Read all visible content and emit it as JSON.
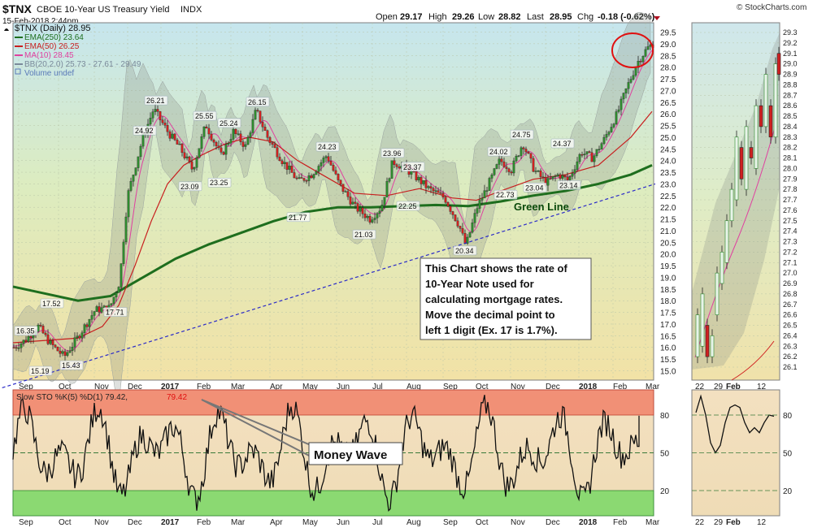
{
  "header": {
    "symbol": "$TNX",
    "name": "CBOE 10-Year US Treasury Yield",
    "exchange": "INDX",
    "date": "15-Feb-2018 2:44pm",
    "ohlc": {
      "open_label": "Open",
      "open": "29.17",
      "high_label": "High",
      "high": "29.26",
      "low_label": "Low",
      "low": "28.82",
      "last_label": "Last",
      "last": "28.95",
      "chg_label": "Chg",
      "chg": "-0.18 (-0.62%)"
    },
    "brand": "© StockCharts.com"
  },
  "legend": {
    "title": "$TNX (Daily) 28.95",
    "items": [
      {
        "text": "EMA(250) 23.64",
        "color": "#1e6e1e"
      },
      {
        "text": "EMA(50) 26.25",
        "color": "#c81e1e"
      },
      {
        "text": "MA(10) 28.45",
        "color": "#e040a0"
      },
      {
        "text": "BB(20,2.0) 25.73 - 27.61 - 29.49",
        "color": "#7a8a9a"
      },
      {
        "text": "Volume undef",
        "color": "#5a7ab8"
      }
    ],
    "osc_title": "Slow STO %K(5) %D(1) 79.42,",
    "osc_value": "79.42"
  },
  "annotations": {
    "green_line": "Green Line",
    "note": [
      "This Chart shows the rate of",
      "10-Year Note used for",
      "calculating mortgage rates.",
      "Move the decimal point to",
      "left 1 digit (Ex. 17 is 1.7%)."
    ],
    "money_wave": "Money Wave"
  },
  "chart_data": [
    {
      "type": "candlestick",
      "title": "$TNX (Daily)",
      "x_tick_labels": [
        "Sep",
        "Oct",
        "Nov",
        "Dec",
        "2017",
        "Feb",
        "Mar",
        "Apr",
        "May",
        "Jun",
        "Jul",
        "Aug",
        "Sep",
        "Oct",
        "Nov",
        "Dec",
        "2018",
        "Feb",
        "Mar"
      ],
      "y_tick_labels": [
        "29.5",
        "29.0",
        "28.5",
        "28.0",
        "27.5",
        "27.0",
        "26.5",
        "26.0",
        "25.5",
        "25.0",
        "24.5",
        "24.0",
        "23.5",
        "23.0",
        "22.5",
        "22.0",
        "21.5",
        "21.0",
        "20.5",
        "20.0",
        "19.5",
        "19.0",
        "18.5",
        "18.0",
        "17.5",
        "17.0",
        "16.5",
        "16.0",
        "15.5",
        "15.0"
      ],
      "ylim": [
        14.6,
        29.9
      ],
      "price_path": [
        [
          0,
          16.0
        ],
        [
          14,
          16.3
        ],
        [
          30,
          16.9
        ],
        [
          44,
          16.2
        ],
        [
          62,
          15.6
        ],
        [
          78,
          16.4
        ],
        [
          100,
          17.6
        ],
        [
          118,
          17.7
        ],
        [
          130,
          18.8
        ],
        [
          140,
          22.5
        ],
        [
          158,
          24.9
        ],
        [
          172,
          26.21
        ],
        [
          190,
          25.2
        ],
        [
          205,
          24.5
        ],
        [
          220,
          23.6
        ],
        [
          236,
          25.55
        ],
        [
          255,
          24.2
        ],
        [
          270,
          25.24
        ],
        [
          285,
          24.6
        ],
        [
          298,
          26.15
        ],
        [
          312,
          25.0
        ],
        [
          330,
          24.0
        ],
        [
          350,
          23.1
        ],
        [
          366,
          23.4
        ],
        [
          385,
          24.23
        ],
        [
          400,
          23.0
        ],
        [
          420,
          22.0
        ],
        [
          438,
          21.5
        ],
        [
          452,
          22.0
        ],
        [
          466,
          23.96
        ],
        [
          480,
          23.7
        ],
        [
          492,
          23.37
        ],
        [
          510,
          22.8
        ],
        [
          530,
          22.4
        ],
        [
          548,
          21.2
        ],
        [
          556,
          20.34
        ],
        [
          570,
          22.0
        ],
        [
          584,
          23.0
        ],
        [
          598,
          24.02
        ],
        [
          612,
          23.6
        ],
        [
          626,
          24.75
        ],
        [
          640,
          23.6
        ],
        [
          655,
          23.04
        ],
        [
          670,
          23.4
        ],
        [
          682,
          23.14
        ],
        [
          698,
          24.37
        ],
        [
          712,
          24.1
        ],
        [
          726,
          24.9
        ],
        [
          742,
          26.0
        ],
        [
          755,
          27.2
        ],
        [
          767,
          28.2
        ],
        [
          779,
          28.8
        ],
        [
          786,
          29.0
        ]
      ],
      "price_labels": [
        {
          "t": 16,
          "v": 16.35,
          "text": "16.35"
        },
        {
          "t": 34,
          "v": 15.19,
          "text": "15.19"
        },
        {
          "t": 48,
          "v": 17.52,
          "text": "17.52"
        },
        {
          "t": 72,
          "v": 15.43,
          "text": "15.43"
        },
        {
          "t": 126,
          "v": 17.71,
          "text": "17.71"
        },
        {
          "t": 162,
          "v": 24.92,
          "text": "24.92"
        },
        {
          "t": 176,
          "v": 26.21,
          "text": "26.21"
        },
        {
          "t": 218,
          "v": 23.09,
          "text": "23.09"
        },
        {
          "t": 236,
          "v": 25.55,
          "text": "25.55"
        },
        {
          "t": 254,
          "v": 23.25,
          "text": "23.25"
        },
        {
          "t": 266,
          "v": 25.24,
          "text": "25.24"
        },
        {
          "t": 301,
          "v": 26.15,
          "text": "26.15"
        },
        {
          "t": 351,
          "v": 21.77,
          "text": "21.77"
        },
        {
          "t": 387,
          "v": 24.23,
          "text": "24.23"
        },
        {
          "t": 432,
          "v": 21.03,
          "text": "21.03"
        },
        {
          "t": 467,
          "v": 23.96,
          "text": "23.96"
        },
        {
          "t": 492,
          "v": 23.37,
          "text": "23.37"
        },
        {
          "t": 486,
          "v": 22.25,
          "text": "22.25"
        },
        {
          "t": 556,
          "v": 20.34,
          "text": "20.34"
        },
        {
          "t": 598,
          "v": 24.02,
          "text": "24.02"
        },
        {
          "t": 606,
          "v": 22.73,
          "text": "22.73"
        },
        {
          "t": 626,
          "v": 24.75,
          "text": "24.75"
        },
        {
          "t": 642,
          "v": 23.04,
          "text": "23.04"
        },
        {
          "t": 684,
          "v": 23.14,
          "text": "23.14"
        },
        {
          "t": 676,
          "v": 24.37,
          "text": "24.37"
        }
      ],
      "series": [
        {
          "name": "EMA(250)",
          "color": "#1e6e1e",
          "points": [
            [
              0,
              18.6
            ],
            [
              40,
              18.3
            ],
            [
              80,
              18.0
            ],
            [
              120,
              18.2
            ],
            [
              160,
              19.0
            ],
            [
              200,
              19.8
            ],
            [
              240,
              20.4
            ],
            [
              280,
              20.9
            ],
            [
              320,
              21.4
            ],
            [
              360,
              21.8
            ],
            [
              400,
              22.0
            ],
            [
              440,
              22.0
            ],
            [
              480,
              22.05
            ],
            [
              520,
              22.1
            ],
            [
              560,
              22.05
            ],
            [
              600,
              22.25
            ],
            [
              640,
              22.5
            ],
            [
              680,
              22.7
            ],
            [
              720,
              23.0
            ],
            [
              760,
              23.4
            ],
            [
              786,
              23.8
            ]
          ]
        },
        {
          "name": "EMA(50)",
          "color": "#c81e1e",
          "points": [
            [
              0,
              16.2
            ],
            [
              40,
              16.3
            ],
            [
              80,
              16.4
            ],
            [
              110,
              16.9
            ],
            [
              130,
              17.8
            ],
            [
              150,
              19.5
            ],
            [
              170,
              21.4
            ],
            [
              190,
              23.0
            ],
            [
              210,
              23.8
            ],
            [
              230,
              24.2
            ],
            [
              260,
              24.7
            ],
            [
              290,
              25.0
            ],
            [
              320,
              24.8
            ],
            [
              350,
              24.0
            ],
            [
              380,
              23.4
            ],
            [
              420,
              22.6
            ],
            [
              460,
              22.5
            ],
            [
              500,
              22.8
            ],
            [
              540,
              22.4
            ],
            [
              570,
              22.3
            ],
            [
              600,
              22.7
            ],
            [
              640,
              23.2
            ],
            [
              680,
              23.4
            ],
            [
              720,
              23.8
            ],
            [
              760,
              25.0
            ],
            [
              786,
              26.1
            ]
          ]
        }
      ],
      "trendline": {
        "name": "trend",
        "from": [
          -20,
          14.2
        ],
        "to": [
          790,
          23.0
        ]
      }
    },
    {
      "type": "line",
      "title": "Slow STO %K(5) %D(1)",
      "y_tick_labels": [
        "80",
        "50",
        "20"
      ],
      "ylim": [
        0,
        100
      ],
      "overbought": 80,
      "oversold": 20,
      "last": 79.42
    }
  ]
}
